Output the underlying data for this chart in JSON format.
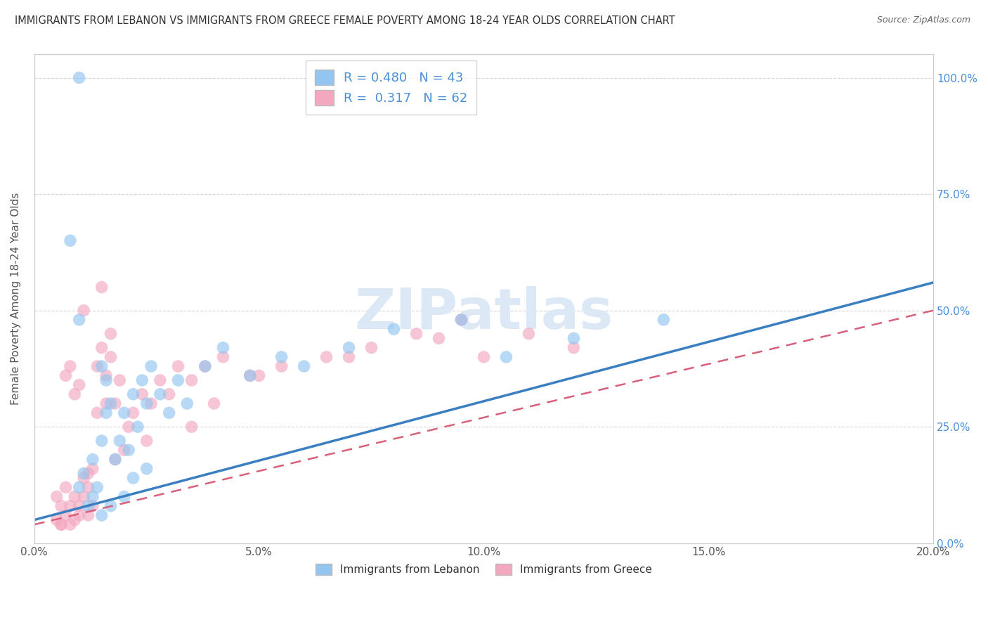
{
  "title": "IMMIGRANTS FROM LEBANON VS IMMIGRANTS FROM GREECE FEMALE POVERTY AMONG 18-24 YEAR OLDS CORRELATION CHART",
  "source": "Source: ZipAtlas.com",
  "ylabel": "Female Poverty Among 18-24 Year Olds",
  "xlim": [
    0.0,
    0.2
  ],
  "ylim": [
    0.0,
    1.05
  ],
  "xtick_labels": [
    "0.0%",
    "5.0%",
    "10.0%",
    "15.0%",
    "20.0%"
  ],
  "xtick_vals": [
    0.0,
    0.05,
    0.1,
    0.15,
    0.2
  ],
  "ytick_labels_right": [
    "0.0%",
    "25.0%",
    "50.0%",
    "75.0%",
    "100.0%"
  ],
  "ytick_vals": [
    0.0,
    0.25,
    0.5,
    0.75,
    1.0
  ],
  "legend_label_1": "Immigrants from Lebanon",
  "legend_label_2": "Immigrants from Greece",
  "r1": 0.48,
  "n1": 43,
  "r2": 0.317,
  "n2": 62,
  "color_lebanon": "#92C5F0",
  "color_greece": "#F4A8C0",
  "color_trendline_lebanon": "#3A7FC1",
  "color_trendline_greece": "#D9607A",
  "background_color": "#FFFFFF",
  "grid_color": "#D0D0D0",
  "watermark": "ZIPatlas",
  "watermark_color": "#DCE8F5",
  "trendline_leb_x0": 0.0,
  "trendline_leb_y0": 0.05,
  "trendline_leb_x1": 0.2,
  "trendline_leb_y1": 0.56,
  "trendline_gre_x0": 0.0,
  "trendline_gre_y0": 0.04,
  "trendline_gre_x1": 0.2,
  "trendline_gre_y1": 0.5,
  "lebanon_x": [
    0.008,
    0.01,
    0.01,
    0.011,
    0.012,
    0.013,
    0.013,
    0.014,
    0.015,
    0.015,
    0.016,
    0.016,
    0.017,
    0.018,
    0.019,
    0.02,
    0.021,
    0.022,
    0.023,
    0.024,
    0.025,
    0.026,
    0.028,
    0.03,
    0.032,
    0.034,
    0.038,
    0.042,
    0.048,
    0.055,
    0.06,
    0.07,
    0.08,
    0.095,
    0.105,
    0.12,
    0.14,
    0.015,
    0.017,
    0.02,
    0.022,
    0.025,
    0.01
  ],
  "lebanon_y": [
    0.65,
    0.48,
    0.12,
    0.15,
    0.08,
    0.1,
    0.18,
    0.12,
    0.38,
    0.22,
    0.35,
    0.28,
    0.3,
    0.18,
    0.22,
    0.28,
    0.2,
    0.32,
    0.25,
    0.35,
    0.3,
    0.38,
    0.32,
    0.28,
    0.35,
    0.3,
    0.38,
    0.42,
    0.36,
    0.4,
    0.38,
    0.42,
    0.46,
    0.48,
    0.4,
    0.44,
    0.48,
    0.06,
    0.08,
    0.1,
    0.14,
    0.16,
    1.0
  ],
  "greece_x": [
    0.005,
    0.005,
    0.006,
    0.006,
    0.007,
    0.007,
    0.008,
    0.008,
    0.009,
    0.009,
    0.01,
    0.01,
    0.011,
    0.011,
    0.012,
    0.012,
    0.013,
    0.013,
    0.014,
    0.014,
    0.015,
    0.015,
    0.016,
    0.016,
    0.017,
    0.017,
    0.018,
    0.019,
    0.02,
    0.021,
    0.022,
    0.024,
    0.026,
    0.028,
    0.03,
    0.032,
    0.035,
    0.038,
    0.042,
    0.048,
    0.055,
    0.065,
    0.075,
    0.09,
    0.1,
    0.11,
    0.12,
    0.035,
    0.025,
    0.018,
    0.012,
    0.04,
    0.05,
    0.07,
    0.085,
    0.095,
    0.007,
    0.008,
    0.009,
    0.01,
    0.011,
    0.006
  ],
  "greece_y": [
    0.05,
    0.1,
    0.04,
    0.08,
    0.06,
    0.12,
    0.04,
    0.08,
    0.05,
    0.1,
    0.06,
    0.08,
    0.1,
    0.14,
    0.06,
    0.12,
    0.08,
    0.16,
    0.38,
    0.28,
    0.55,
    0.42,
    0.36,
    0.3,
    0.4,
    0.45,
    0.3,
    0.35,
    0.2,
    0.25,
    0.28,
    0.32,
    0.3,
    0.35,
    0.32,
    0.38,
    0.35,
    0.38,
    0.4,
    0.36,
    0.38,
    0.4,
    0.42,
    0.44,
    0.4,
    0.45,
    0.42,
    0.25,
    0.22,
    0.18,
    0.15,
    0.3,
    0.36,
    0.4,
    0.45,
    0.48,
    0.36,
    0.38,
    0.32,
    0.34,
    0.5,
    0.04
  ]
}
